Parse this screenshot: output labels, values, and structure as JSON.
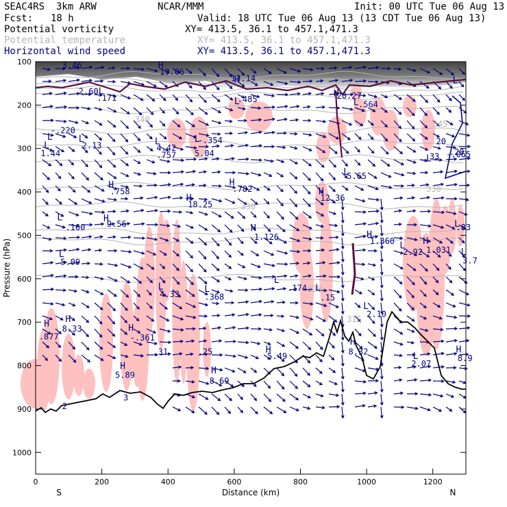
{
  "header": {
    "model": "SEAC4RS  3km ARW",
    "center": "NCAR/MMM",
    "init": "Init: 00 UTC Tue 06 Aug 13",
    "fcst_label": "Fcst:",
    "fcst_value": "18 h",
    "valid": "Valid: 18 UTC Tue 06 Aug 13 (13 CDT Tue 06 Aug 13)",
    "fields": [
      {
        "name": "Potential vorticity",
        "xy": "XY= 413.5, 36.1 to 457.1,471.3",
        "color": "#000000"
      },
      {
        "name": "Potential temperature",
        "xy": "XY= 413.5, 36.1 to 457.1,471.3",
        "color": "#b4b4b4"
      },
      {
        "name": "Horizontal wind speed",
        "xy": "XY= 413.5, 36.1 to 457.1,471.3",
        "color": "#000080"
      }
    ]
  },
  "chart_data": {
    "type": "cross-section",
    "xlabel": "Distance (km)",
    "ylabel": "Pressure (hPa)",
    "xlim": [
      0,
      1300
    ],
    "ylim": [
      1050,
      100
    ],
    "x_ticks": [
      0,
      200,
      400,
      600,
      800,
      1000,
      1200
    ],
    "y_ticks": [
      100,
      200,
      300,
      400,
      500,
      600,
      700,
      800,
      900,
      1000
    ],
    "x_end_labels": {
      "left": "S",
      "right": "N"
    },
    "colors": {
      "terrain": "#000000",
      "pv_shading": "#ffc0c0",
      "theta": "#b4b4b4",
      "wind": "#000080",
      "pv_contour": "#5a0f3c"
    },
    "theta_contours": [
      {
        "label": "315",
        "x": 940,
        "p": 700
      },
      {
        "label": "320",
        "x": 820,
        "p": 630
      },
      {
        "label": "330",
        "x": 620,
        "p": 440
      },
      {
        "label": "330",
        "x": 1180,
        "p": 400
      },
      {
        "label": "340",
        "x": 300,
        "p": 240
      },
      {
        "label": "345",
        "x": 1200,
        "p": 250
      }
    ],
    "labels": [
      {
        "text": "L",
        "x": 35,
        "p": 280
      },
      {
        "text": "-.220",
        "x": 45,
        "p": 265
      },
      {
        "text": "L",
        "x": 25,
        "p": 300
      },
      {
        "text": "1.44",
        "x": 15,
        "p": 318
      },
      {
        "text": "L",
        "x": 130,
        "p": 285
      },
      {
        "text": "2.13",
        "x": 140,
        "p": 300
      },
      {
        "text": "L",
        "x": 190,
        "p": 175
      },
      {
        "text": ".171",
        "x": 185,
        "p": 190
      },
      {
        "text": "H",
        "x": 370,
        "p": 115
      },
      {
        "text": "19.06",
        "x": 375,
        "p": 130
      },
      {
        "text": "L",
        "x": 360,
        "p": 290
      },
      {
        "text": "4.42",
        "x": 365,
        "p": 305
      },
      {
        "text": ".757",
        "x": 365,
        "p": 322
      },
      {
        "text": "L",
        "x": 480,
        "p": 285
      },
      {
        "text": "-.354",
        "x": 490,
        "p": 288
      },
      {
        "text": "5.04",
        "x": 480,
        "p": 318
      },
      {
        "text": "H",
        "x": 600,
        "p": 148
      },
      {
        "text": "L",
        "x": 600,
        "p": 198
      },
      {
        "text": ".485",
        "x": 610,
        "p": 193
      },
      {
        "text": "H",
        "x": 900,
        "p": 180
      },
      {
        "text": "20.27",
        "x": 910,
        "p": 185
      },
      {
        "text": "L",
        "x": 960,
        "p": 200
      },
      {
        "text": "-.564",
        "x": 960,
        "p": 205
      },
      {
        "text": "L",
        "x": 1180,
        "p": 330
      },
      {
        "text": "-.065",
        "x": 1240,
        "p": 320
      },
      {
        "text": "L",
        "x": 930,
        "p": 360
      },
      {
        "text": "5.65",
        "x": 940,
        "p": 370
      },
      {
        "text": "H",
        "x": 220,
        "p": 390
      },
      {
        "text": ".758",
        "x": 225,
        "p": 405
      },
      {
        "text": "H",
        "x": 585,
        "p": 385
      },
      {
        "text": ".782",
        "x": 595,
        "p": 400
      },
      {
        "text": "H",
        "x": 455,
        "p": 420
      },
      {
        "text": "18.25",
        "x": 460,
        "p": 435
      },
      {
        "text": "H",
        "x": 855,
        "p": 405
      },
      {
        "text": "12.36",
        "x": 860,
        "p": 420
      },
      {
        "text": "L",
        "x": 65,
        "p": 465
      },
      {
        "text": "-.160",
        "x": 75,
        "p": 488
      },
      {
        "text": "H",
        "x": 205,
        "p": 468
      },
      {
        "text": "9.56",
        "x": 215,
        "p": 480
      },
      {
        "text": "L",
        "x": 70,
        "p": 550
      },
      {
        "text": "5.09",
        "x": 75,
        "p": 568
      },
      {
        "text": "H",
        "x": 650,
        "p": 490
      },
      {
        "text": "1.126",
        "x": 660,
        "p": 510
      },
      {
        "text": "H",
        "x": 1000,
        "p": 505
      },
      {
        "text": "1.360",
        "x": 1010,
        "p": 520
      },
      {
        "text": "H",
        "x": 1170,
        "p": 520
      },
      {
        "text": "1.031",
        "x": 1180,
        "p": 540
      },
      {
        "text": "L",
        "x": 1265,
        "p": 480
      },
      {
        "text": ".83",
        "x": 1270,
        "p": 488
      },
      {
        "text": "L",
        "x": 1285,
        "p": 545
      },
      {
        "text": "3.7",
        "x": 1290,
        "p": 565
      },
      {
        "text": "L",
        "x": 1100,
        "p": 530
      },
      {
        "text": "2.92",
        "x": 1110,
        "p": 545
      },
      {
        "text": "L",
        "x": 370,
        "p": 625
      },
      {
        "text": "4.33",
        "x": 375,
        "p": 642
      },
      {
        "text": "L",
        "x": 510,
        "p": 630
      },
      {
        "text": ".368",
        "x": 510,
        "p": 648
      },
      {
        "text": "L",
        "x": 720,
        "p": 610
      },
      {
        "text": "-.174",
        "x": 745,
        "p": 628
      },
      {
        "text": "L",
        "x": 845,
        "p": 628
      },
      {
        "text": ".15",
        "x": 860,
        "p": 650
      },
      {
        "text": "L",
        "x": 990,
        "p": 670
      },
      {
        "text": "2.10",
        "x": 1000,
        "p": 688
      },
      {
        "text": "H",
        "x": 25,
        "p": 710
      },
      {
        "text": "H",
        "x": 90,
        "p": 700
      },
      {
        "text": ".877",
        "x": 10,
        "p": 740
      },
      {
        "text": "8.33",
        "x": 80,
        "p": 722
      },
      {
        "text": "H",
        "x": 280,
        "p": 720
      },
      {
        "text": "-.361",
        "x": 285,
        "p": 742
      },
      {
        "text": ".31",
        "x": 355,
        "p": 775
      },
      {
        "text": ".25",
        "x": 490,
        "p": 775
      },
      {
        "text": "H",
        "x": 695,
        "p": 770
      },
      {
        "text": "5.49",
        "x": 700,
        "p": 785
      },
      {
        "text": "H",
        "x": 950,
        "p": 752
      },
      {
        "text": "8.32",
        "x": 945,
        "p": 775
      },
      {
        "text": "L",
        "x": 1140,
        "p": 785
      },
      {
        "text": "2.07",
        "x": 1135,
        "p": 802
      },
      {
        "text": "H",
        "x": 1270,
        "p": 770
      },
      {
        "text": "8.9",
        "x": 1275,
        "p": 790
      },
      {
        "text": "H",
        "x": 255,
        "p": 808
      },
      {
        "text": "5.89",
        "x": 240,
        "p": 828
      },
      {
        "text": "H",
        "x": 530,
        "p": 818
      },
      {
        "text": "8.69",
        "x": 525,
        "p": 842
      },
      {
        "text": "3.46",
        "x": 80,
        "p": 115
      },
      {
        "text": "2.60",
        "x": 130,
        "p": 175
      },
      {
        "text": "2",
        "x": 80,
        "p": 900
      },
      {
        "text": "3",
        "x": 265,
        "p": 880
      },
      {
        "text": "13.14",
        "x": 590,
        "p": 145
      },
      {
        "text": "20",
        "x": 1210,
        "p": 290
      },
      {
        "text": "33",
        "x": 1190,
        "p": 325
      },
      {
        "text": "L",
        "x": 1260,
        "p": 150
      },
      {
        "text": ".20",
        "x": 1250,
        "p": 315
      }
    ]
  }
}
